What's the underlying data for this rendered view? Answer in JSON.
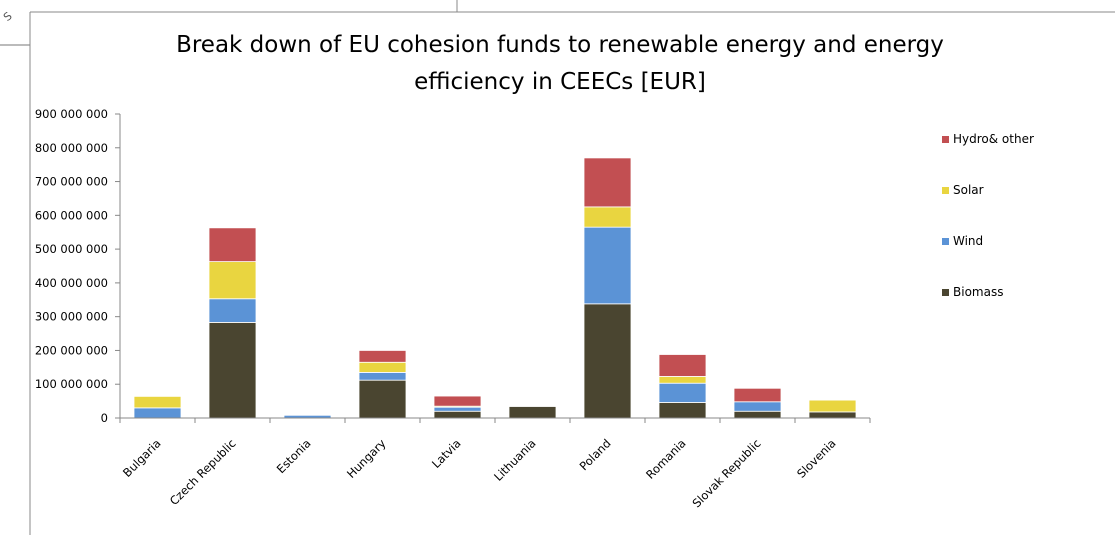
{
  "corner_fragment": "S",
  "chart_data": {
    "type": "bar",
    "stacked": true,
    "title": "Break down of EU cohesion funds to renewable energy and energy efficiency in CEECs [EUR]",
    "title_lines": [
      "Break down of EU cohesion funds to renewable energy and energy",
      "efficiency in CEECs [EUR]"
    ],
    "categories": [
      "Bulgaria",
      "Czech Republic",
      "Estonia",
      "Hungary",
      "Latvia",
      "Lithuania",
      "Poland",
      "Romania",
      "Slovak Republic",
      "Slovenia"
    ],
    "series": [
      {
        "name": "Biomass",
        "color": "#4a4530",
        "values": [
          0,
          283000000,
          0,
          112000000,
          20000000,
          34000000,
          338000000,
          46000000,
          20000000,
          18000000
        ]
      },
      {
        "name": "Wind",
        "color": "#5b93d6",
        "values": [
          30000000,
          70000000,
          8000000,
          23000000,
          12000000,
          0,
          227000000,
          57000000,
          28000000,
          0
        ]
      },
      {
        "name": "Solar",
        "color": "#e9d540",
        "values": [
          34000000,
          110000000,
          0,
          30000000,
          3000000,
          0,
          60000000,
          20000000,
          0,
          35000000
        ]
      },
      {
        "name": "Hydro& other",
        "color": "#c24f52",
        "values": [
          0,
          100000000,
          0,
          35000000,
          30000000,
          0,
          145000000,
          65000000,
          40000000,
          0
        ]
      }
    ],
    "legend_order": [
      "Hydro& other",
      "Solar",
      "Wind",
      "Biomass"
    ],
    "legend_position": "right",
    "ylim": [
      0,
      900000000
    ],
    "yticks": [
      0,
      100000000,
      200000000,
      300000000,
      400000000,
      500000000,
      600000000,
      700000000,
      800000000,
      900000000
    ],
    "ytick_labels": [
      "0",
      "100 000 000",
      "200 000 000",
      "300 000 000",
      "400 000 000",
      "500 000 000",
      "600 000 000",
      "700 000 000",
      "800 000 000",
      "900 000 000"
    ],
    "grid": false
  }
}
